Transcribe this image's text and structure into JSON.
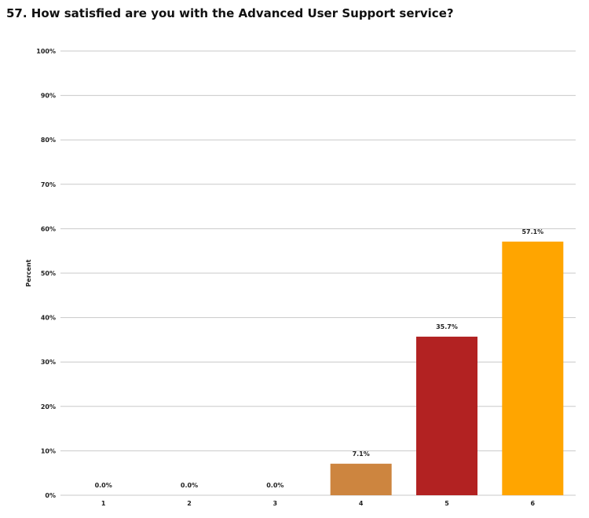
{
  "chart_data": {
    "type": "bar",
    "title": "57. How satisfied are you with the Advanced User Support service?",
    "ylabel": "Percent",
    "xlabel": "",
    "categories": [
      "1",
      "2",
      "3",
      "4",
      "5",
      "6"
    ],
    "values": [
      0.0,
      0.0,
      0.0,
      7.1,
      35.7,
      57.1
    ],
    "data_labels": [
      "0.0%",
      "0.0%",
      "0.0%",
      "7.1%",
      "35.7%",
      "57.1%"
    ],
    "colors": [
      "#c0392b",
      "#c0392b",
      "#c0392b",
      "#cd853f",
      "#b22222",
      "#ffa500"
    ],
    "ylim": [
      0,
      100
    ],
    "y_ticks": [
      "0%",
      "10%",
      "20%",
      "30%",
      "40%",
      "50%",
      "60%",
      "70%",
      "80%",
      "90%",
      "100%"
    ],
    "grid": true,
    "legend": "none"
  }
}
